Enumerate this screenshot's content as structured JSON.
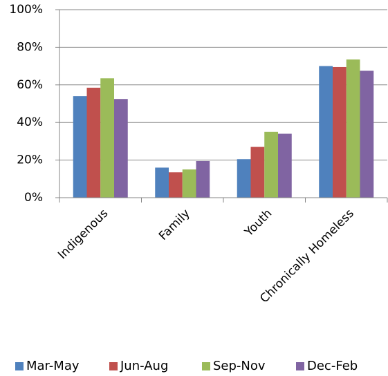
{
  "chart_data": {
    "type": "bar",
    "categories": [
      "Indigenous",
      "Family",
      "Youth",
      "Chronically Homeless"
    ],
    "series": [
      {
        "name": "Mar-May",
        "color": "#4f81bd",
        "values": [
          54,
          16,
          20.5,
          70
        ]
      },
      {
        "name": "Jun-Aug",
        "color": "#c0504d",
        "values": [
          58.5,
          13.5,
          27,
          69.5
        ]
      },
      {
        "name": "Sep-Nov",
        "color": "#9bbb59",
        "values": [
          63.5,
          15,
          35,
          73.5
        ]
      },
      {
        "name": "Dec-Feb",
        "color": "#8064a2",
        "values": [
          52.5,
          19.5,
          34,
          67.5
        ]
      }
    ],
    "ylim": [
      0,
      100
    ],
    "yticks": [
      {
        "value": 0,
        "label": "0%"
      },
      {
        "value": 20,
        "label": "20%"
      },
      {
        "value": 40,
        "label": "40%"
      },
      {
        "value": 60,
        "label": "60%"
      },
      {
        "value": 80,
        "label": "80%"
      },
      {
        "value": 100,
        "label": "100%"
      }
    ],
    "grid": true,
    "legend": "bottom"
  }
}
